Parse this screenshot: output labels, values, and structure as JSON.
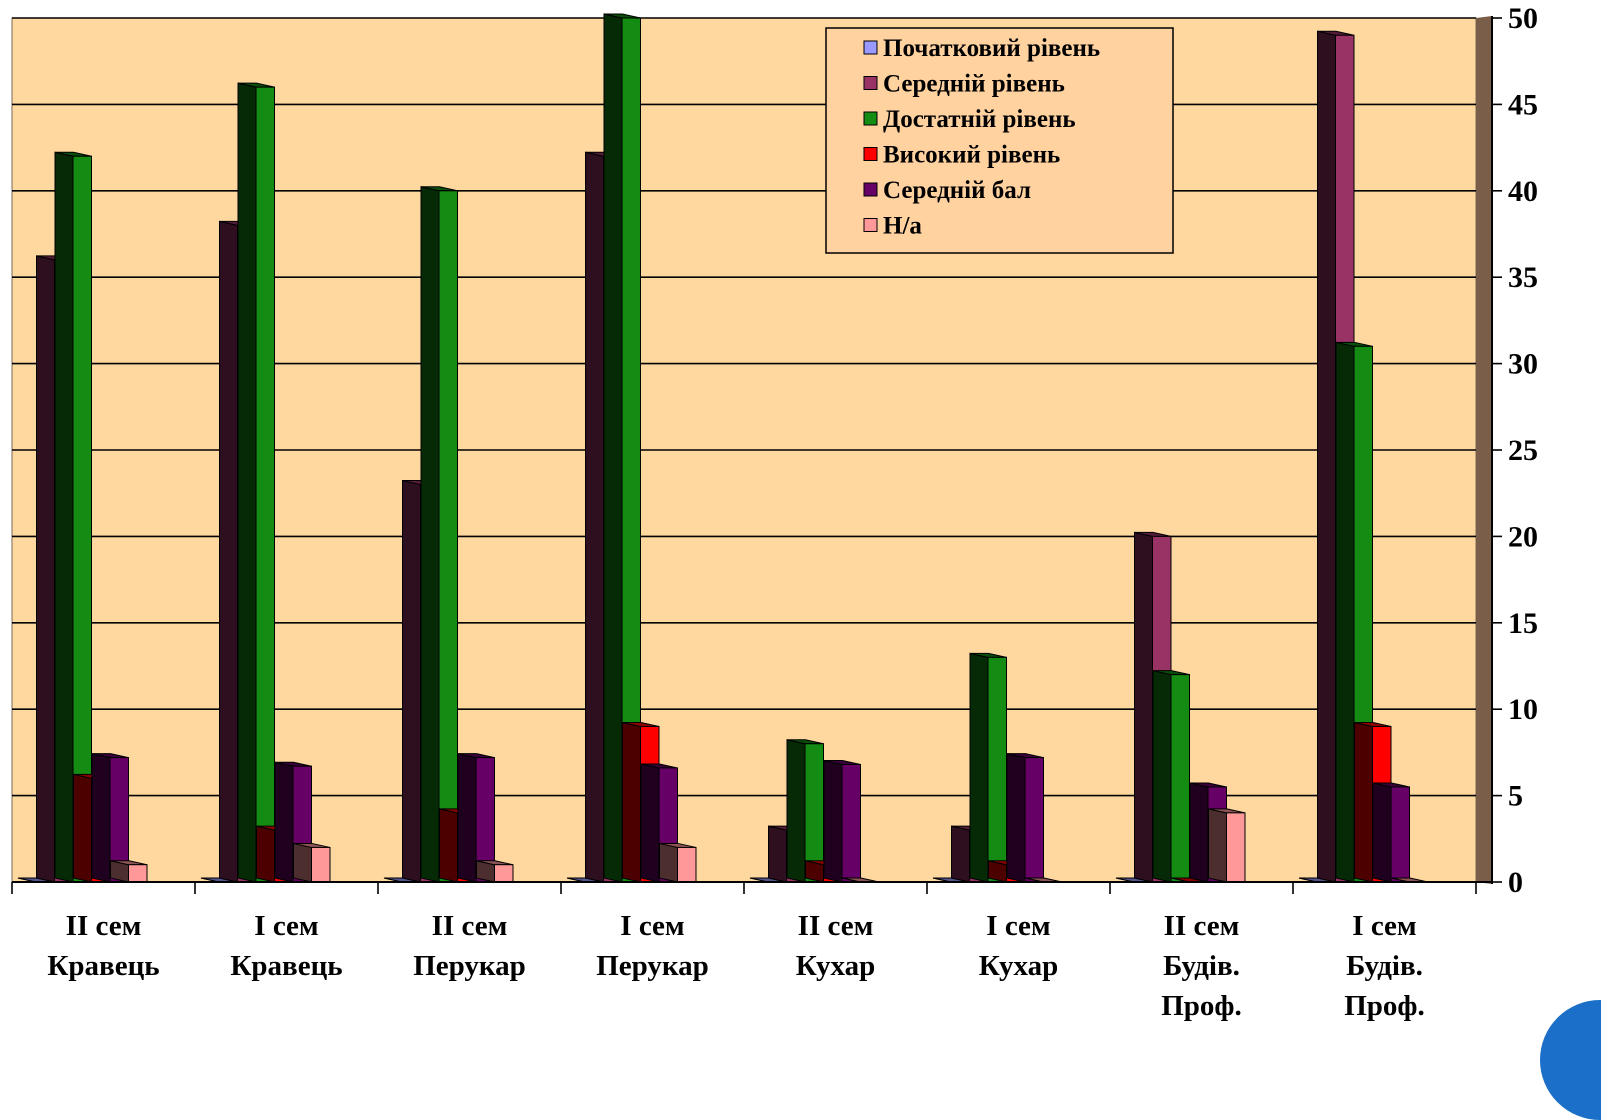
{
  "chart_data": {
    "type": "bar",
    "categories": [
      [
        "II сем",
        "Кравець"
      ],
      [
        "I сем",
        "Кравець"
      ],
      [
        "II сем",
        "Перукар"
      ],
      [
        "I сем",
        "Перукар"
      ],
      [
        "II сем",
        "Кухар"
      ],
      [
        "I сем",
        "Кухар"
      ],
      [
        "II сем",
        "Будів.",
        "Проф."
      ],
      [
        "I сем",
        "Будів.",
        "Проф."
      ]
    ],
    "series": [
      {
        "name": "Початковий рівень",
        "color": "#9999ff",
        "values": [
          0,
          0,
          0,
          0,
          0,
          0,
          0,
          0
        ]
      },
      {
        "name": "Середній рівень",
        "color": "#993366",
        "values": [
          36,
          38,
          23,
          42,
          3,
          3,
          20,
          49
        ]
      },
      {
        "name": "Достатній рівень",
        "color": "#148c14",
        "values": [
          42,
          46,
          40,
          50,
          8,
          13,
          12,
          31
        ]
      },
      {
        "name": "Високий рівень",
        "color": "#ff0000",
        "values": [
          6,
          3,
          4,
          9,
          1,
          1,
          0,
          9
        ]
      },
      {
        "name": "Середній бал",
        "color": "#660066",
        "values": [
          7.2,
          6.7,
          7.2,
          6.6,
          6.8,
          7.2,
          5.5,
          5.5
        ]
      },
      {
        "name": "Н/а",
        "color": "#ff9999",
        "values": [
          1,
          2,
          1,
          2,
          0,
          0,
          4,
          0
        ]
      }
    ],
    "ylim": [
      0,
      50
    ],
    "yticks": [
      0,
      5,
      10,
      15,
      20,
      25,
      30,
      35,
      40,
      45,
      50
    ],
    "y_axis_side": "right",
    "grid": true,
    "legend_position": "top-right",
    "plot_background": "#ffd8a0",
    "style": "3d-clustered-column"
  }
}
